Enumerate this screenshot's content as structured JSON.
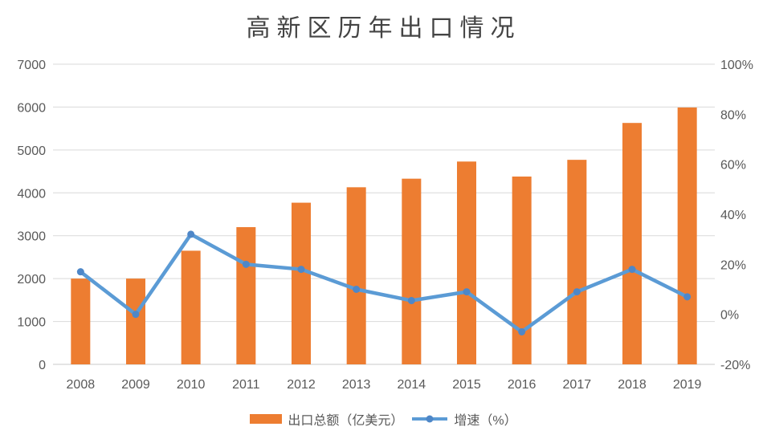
{
  "chart_data": {
    "type": "bar+line",
    "title": "高新区历年出口情况",
    "categories": [
      "2008",
      "2009",
      "2010",
      "2011",
      "2012",
      "2013",
      "2014",
      "2015",
      "2016",
      "2017",
      "2018",
      "2019"
    ],
    "series": [
      {
        "name": "出口总额（亿美元）",
        "type": "bar",
        "axis": "left",
        "values": [
          2000,
          2000,
          2650,
          3200,
          3770,
          4130,
          4330,
          4730,
          4380,
          4770,
          5630,
          5990
        ]
      },
      {
        "name": "增速（%）",
        "type": "line",
        "axis": "right",
        "values": [
          17,
          0,
          32,
          20,
          18,
          10,
          5.5,
          9,
          -7,
          9,
          18,
          7
        ]
      }
    ],
    "left_axis": {
      "min": 0,
      "max": 7000,
      "step": 1000,
      "tick_labels": [
        "7000",
        "6000",
        "5000",
        "4000",
        "3000",
        "2000",
        "1000",
        "0"
      ]
    },
    "right_axis": {
      "min": -20,
      "max": 100,
      "step": 20,
      "tick_labels": [
        "100%",
        "80%",
        "60%",
        "40%",
        "20%",
        "0%",
        "-20%"
      ]
    },
    "grid": true,
    "legend_position": "bottom"
  },
  "legend": {
    "items": [
      {
        "label": "出口总额（亿美元）",
        "swatch": "bar"
      },
      {
        "label": "增速（%）",
        "swatch": "line-with-marker"
      }
    ]
  },
  "colors": {
    "bar": "#ED7D31",
    "line": "#5B9BD5",
    "marker": "#4E87C8",
    "gridline": "#D9D9D9",
    "axis_line": "#C9C9C9",
    "tick_text": "#595959",
    "title_text": "#444444",
    "legend_text": "#595959",
    "background": "#FFFFFF"
  }
}
